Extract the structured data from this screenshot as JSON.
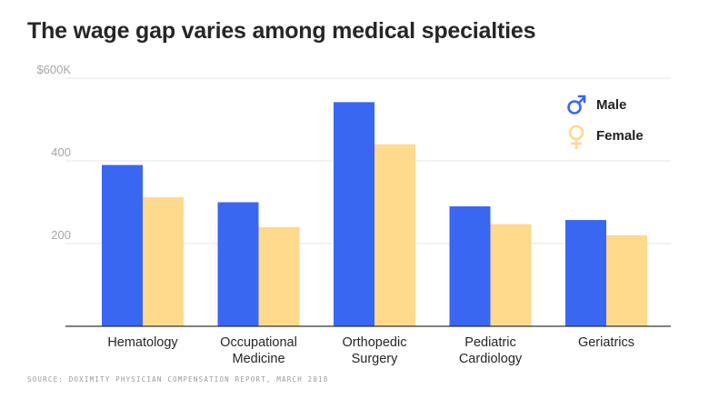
{
  "title": "The wage gap varies among medical specialties",
  "source": "SOURCE: DOXIMITY PHYSICIAN COMPENSATION REPORT, MARCH 2018",
  "colors": {
    "male": "#3a67f1",
    "female": "#ffd98c",
    "grid": "#e6e6e6",
    "axis": "#333333",
    "tick": "#a8a8a8"
  },
  "chart_data": {
    "type": "bar",
    "title": "The wage gap varies among medical specialties",
    "categories": [
      "Hematology",
      "Occupational Medicine",
      "Orthopedic Surgery",
      "Pediatric Cardiology",
      "Geriatrics"
    ],
    "category_lines": [
      [
        "Hematology"
      ],
      [
        "Occupational",
        "Medicine"
      ],
      [
        "Orthopedic",
        "Surgery"
      ],
      [
        "Pediatric",
        "Cardiology"
      ],
      [
        "Geriatrics"
      ]
    ],
    "series": [
      {
        "name": "Male",
        "icon": "male-symbol-icon",
        "values": [
          390,
          300,
          542,
          290,
          257
        ]
      },
      {
        "name": "Female",
        "icon": "female-symbol-icon",
        "values": [
          312,
          240,
          440,
          247,
          220
        ]
      }
    ],
    "ylim": [
      0,
      600
    ],
    "yticks": [
      200,
      400,
      600
    ],
    "ytick_labels": [
      "200",
      "400",
      "$600K"
    ],
    "xlabel": "",
    "ylabel": "",
    "grid": true,
    "legend_position": "top-right"
  }
}
